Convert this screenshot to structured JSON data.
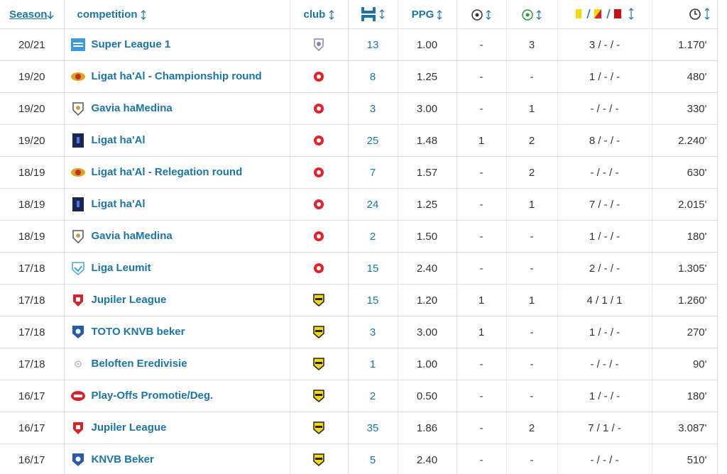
{
  "header": {
    "season": "Season",
    "competition": "competition",
    "club": "club",
    "ppg": "PPG"
  },
  "table": {
    "rows": [
      [
        "20/21",
        "Super League 1",
        "13",
        "1.00",
        "-",
        "3",
        "3 / - / -",
        "1.170'"
      ],
      [
        "19/20",
        "Ligat ha'Al - Championship round",
        "8",
        "1.25",
        "-",
        "-",
        "1 / - / -",
        "480'"
      ],
      [
        "19/20",
        "Gavia haMedina",
        "3",
        "3.00",
        "-",
        "1",
        "- / - / -",
        "330'"
      ],
      [
        "19/20",
        "Ligat ha'Al",
        "25",
        "1.48",
        "1",
        "2",
        "8 / - / -",
        "2.240'"
      ],
      [
        "18/19",
        "Ligat ha'Al - Relegation round",
        "7",
        "1.57",
        "-",
        "2",
        "- / - / -",
        "630'"
      ],
      [
        "18/19",
        "Ligat ha'Al",
        "24",
        "1.25",
        "-",
        "1",
        "7 / - / -",
        "2.015'"
      ],
      [
        "18/19",
        "Gavia haMedina",
        "2",
        "1.50",
        "-",
        "-",
        "1 / - / -",
        "180'"
      ],
      [
        "17/18",
        "Liga Leumit",
        "15",
        "2.40",
        "-",
        "-",
        "2 / - / -",
        "1.305'"
      ],
      [
        "17/18",
        "Jupiler League",
        "15",
        "1.20",
        "1",
        "1",
        "4 / 1 / 1",
        "1.260'"
      ],
      [
        "17/18",
        "TOTO KNVB beker",
        "3",
        "3.00",
        "1",
        "-",
        "1 / - / -",
        "270'"
      ],
      [
        "17/18",
        "Beloften Eredivisie",
        "1",
        "1.00",
        "-",
        "-",
        "- / - / -",
        "90'"
      ],
      [
        "16/17",
        "Play-Offs Promotie/Deg.",
        "2",
        "0.50",
        "-",
        "-",
        "1 / - / -",
        "180'"
      ],
      [
        "16/17",
        "Jupiler League",
        "35",
        "1.86",
        "-",
        "2",
        "7 / 1 / -",
        "3.087'"
      ],
      [
        "16/17",
        "KNVB Beker",
        "5",
        "2.40",
        "-",
        "-",
        "- / - / -",
        "510'"
      ]
    ]
  }
}
